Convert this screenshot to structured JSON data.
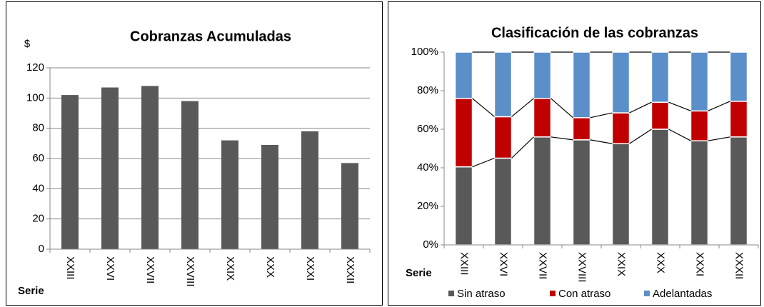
{
  "chart_data": [
    {
      "type": "bar",
      "title": "Cobranzas Acumuladas",
      "y_label": "$",
      "x_label": "Serie",
      "categories": [
        "XXIII",
        "XXVI",
        "XXVII",
        "XXVIII",
        "XXIX",
        "XXX",
        "XXXI",
        "XXXII"
      ],
      "values": [
        102,
        107,
        108,
        98,
        72,
        69,
        78,
        57
      ],
      "color": "#595959",
      "ylim": [
        0,
        120
      ],
      "yticks": [
        0,
        20,
        40,
        60,
        80,
        100,
        120
      ],
      "grid": true
    },
    {
      "type": "stacked_bar",
      "title": "Clasificación de las cobranzas",
      "x_label": "Serie",
      "categories": [
        "XXIII",
        "XXVI",
        "XXVII",
        "XXVIII",
        "XXIX",
        "XXX",
        "XXXI",
        "XXXII"
      ],
      "series": [
        {
          "name": "Sin atraso",
          "color": "#595959",
          "values": [
            40.5,
            45,
            56,
            54.5,
            52.5,
            60,
            54,
            56
          ]
        },
        {
          "name": "Con atraso",
          "color": "#c00000",
          "values": [
            35.5,
            21.5,
            20,
            11.5,
            16,
            14,
            15.5,
            18.5
          ]
        },
        {
          "name": "Adelantadas",
          "color": "#5b8fc9",
          "values": [
            24,
            33.5,
            24,
            34,
            31.5,
            26,
            30.5,
            25.5
          ]
        }
      ],
      "ylim": [
        0,
        100
      ],
      "yticks": [
        {
          "value": 0,
          "label": "0%"
        },
        {
          "value": 20,
          "label": "20%"
        },
        {
          "value": 40,
          "label": "40%"
        },
        {
          "value": 60,
          "label": "60%"
        },
        {
          "value": 80,
          "label": "80%"
        },
        {
          "value": 100,
          "label": "100%"
        }
      ],
      "grid": false,
      "series_lines": true,
      "legend": "bottom"
    }
  ]
}
